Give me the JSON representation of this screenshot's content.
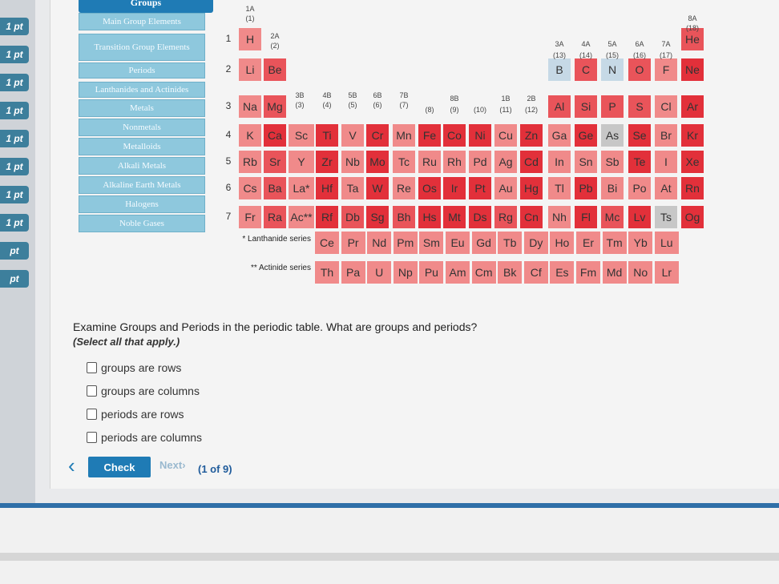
{
  "sidebar": {
    "points_label": "1 pt",
    "partial_label": "pt"
  },
  "filters": {
    "header": "Groups",
    "items": [
      "Main Group Elements",
      "Transition Group Elements",
      "Periods",
      "Lanthanides and Actinides",
      "Metals",
      "Nonmetals",
      "Metalloids",
      "Alkali Metals",
      "Alkaline Earth Metals",
      "Halogens",
      "Noble Gases"
    ]
  },
  "groups": [
    "1A",
    "(1)",
    "2A",
    "(2)",
    "3B",
    "(3)",
    "4B",
    "(4)",
    "5B",
    "(5)",
    "6B",
    "(6)",
    "7B",
    "(7)",
    "8B",
    "(8)",
    "(9)",
    "(10)",
    "1B",
    "(11)",
    "2B",
    "(12)",
    "3A",
    "(13)",
    "4A",
    "(14)",
    "5A",
    "(15)",
    "6A",
    "(16)",
    "7A",
    "(17)",
    "8A",
    "(18)"
  ],
  "periods": [
    "1",
    "2",
    "3",
    "4",
    "5",
    "6",
    "7"
  ],
  "elements": [
    [
      "H",
      "",
      "",
      "",
      "",
      "",
      "",
      "",
      "",
      "",
      "",
      "",
      "",
      "",
      "",
      "",
      "",
      "He"
    ],
    [
      "Li",
      "Be",
      "",
      "",
      "",
      "",
      "",
      "",
      "",
      "",
      "",
      "",
      "B",
      "C",
      "N",
      "O",
      "F",
      "Ne"
    ],
    [
      "Na",
      "Mg",
      "",
      "",
      "",
      "",
      "",
      "",
      "",
      "",
      "",
      "",
      "Al",
      "Si",
      "P",
      "S",
      "Cl",
      "Ar"
    ],
    [
      "K",
      "Ca",
      "Sc",
      "Ti",
      "V",
      "Cr",
      "Mn",
      "Fe",
      "Co",
      "Ni",
      "Cu",
      "Zn",
      "Ga",
      "Ge",
      "As",
      "Se",
      "Br",
      "Kr"
    ],
    [
      "Rb",
      "Sr",
      "Y",
      "Zr",
      "Nb",
      "Mo",
      "Tc",
      "Ru",
      "Rh",
      "Pd",
      "Ag",
      "Cd",
      "In",
      "Sn",
      "Sb",
      "Te",
      "I",
      "Xe"
    ],
    [
      "Cs",
      "Ba",
      "La*",
      "Hf",
      "Ta",
      "W",
      "Re",
      "Os",
      "Ir",
      "Pt",
      "Au",
      "Hg",
      "Tl",
      "Pb",
      "Bi",
      "Po",
      "At",
      "Rn"
    ],
    [
      "Fr",
      "Ra",
      "Ac**",
      "Rf",
      "Db",
      "Sg",
      "Bh",
      "Hs",
      "Mt",
      "Ds",
      "Rg",
      "Cn",
      "Nh",
      "Fl",
      "Mc",
      "Lv",
      "Ts",
      "Og"
    ]
  ],
  "lanthanides": {
    "label": "* Lanthanide series",
    "items": [
      "Ce",
      "Pr",
      "Nd",
      "Pm",
      "Sm",
      "Eu",
      "Gd",
      "Tb",
      "Dy",
      "Ho",
      "Er",
      "Tm",
      "Yb",
      "Lu"
    ]
  },
  "actinides": {
    "label": "** Actinide series",
    "items": [
      "Th",
      "Pa",
      "U",
      "Np",
      "Pu",
      "Am",
      "Cm",
      "Bk",
      "Cf",
      "Es",
      "Fm",
      "Md",
      "No",
      "Lr"
    ]
  },
  "question": {
    "prompt": "Examine Groups and Periods in the periodic table. What are groups and periods?",
    "instruction": "(Select all that apply.)",
    "options": [
      "groups are rows",
      "groups are columns",
      "periods are rows",
      "periods are columns"
    ]
  },
  "controls": {
    "check_label": "Check",
    "next_label": "Next",
    "progress": "(1 of 9)"
  },
  "colors": {
    "accent": "#1f7bb5",
    "light": "#f08a8a",
    "mid": "#e9545a",
    "red": "#e2303a",
    "blue": "#c6d9e6",
    "grey": "#c7c7c7"
  }
}
